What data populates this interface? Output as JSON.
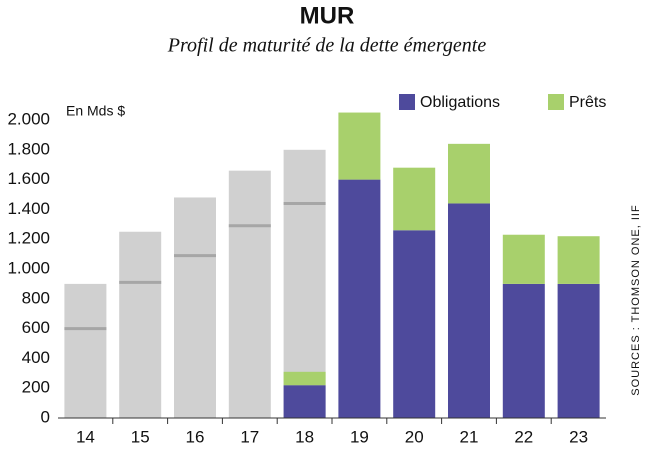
{
  "chart_data": {
    "type": "bar",
    "stacked": true,
    "title": "MUR",
    "subtitle": "Profil de maturité de la dette émergente",
    "unit_label": "En Mds $",
    "source": "SOURCES : THOMSON ONE, IIF",
    "categories": [
      "14",
      "15",
      "16",
      "17",
      "18",
      "19",
      "20",
      "21",
      "22",
      "23"
    ],
    "historical": {
      "color": "#d0d0d0",
      "values": [
        900,
        1250,
        1480,
        1660,
        1800,
        null,
        null,
        null,
        null,
        null
      ]
    },
    "markers": {
      "color": "#a6a6a6",
      "values": [
        600,
        910,
        1090,
        1290,
        1440,
        null,
        null,
        null,
        null,
        null
      ]
    },
    "series": [
      {
        "name": "Obligations",
        "color": "#4e4a9c",
        "values": [
          null,
          null,
          null,
          null,
          220,
          1600,
          1260,
          1440,
          900,
          900
        ]
      },
      {
        "name": "Prêts",
        "color": "#a8d06c",
        "values": [
          null,
          null,
          null,
          null,
          90,
          450,
          420,
          400,
          330,
          320
        ]
      }
    ],
    "ylim": [
      0,
      2000
    ],
    "yticks": [
      0,
      200,
      400,
      600,
      800,
      {
        "value": 1000,
        "label": "1.000"
      },
      {
        "value": 1200,
        "label": "1.200"
      },
      {
        "value": 1400,
        "label": "1.400"
      },
      {
        "value": 1600,
        "label": "1.600"
      },
      {
        "value": 1800,
        "label": "1.800"
      },
      {
        "value": 2000,
        "label": "2.000"
      }
    ],
    "grid": false,
    "legend": "top-right"
  }
}
